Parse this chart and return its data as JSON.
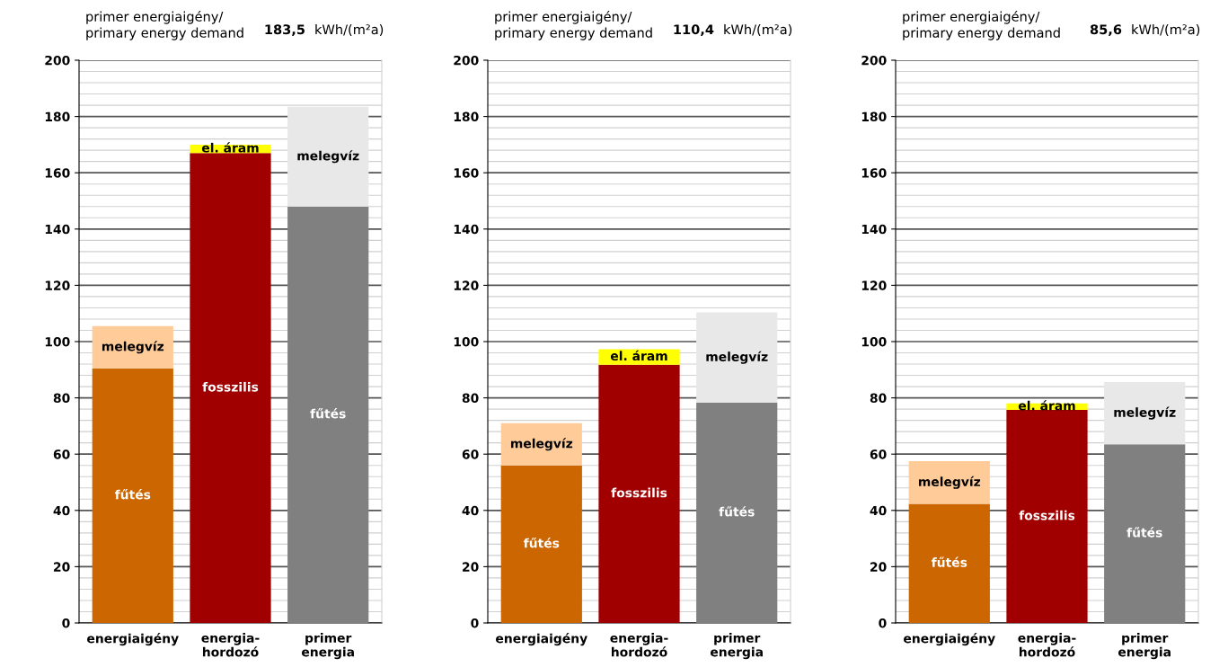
{
  "chart_data": [
    {
      "type": "bar",
      "title": "primer energiaigény/\nprimary energy demand",
      "annotations": [
        "183,5",
        "kWh/(m²a)"
      ],
      "stacked": true,
      "categories": [
        "energiaigény",
        "energia-\nhordozó",
        "primer\nenergia"
      ],
      "series": [
        {
          "colors": [
            "#cc6600",
            "#a00000",
            "#808080"
          ],
          "values": [
            90.5,
            167,
            148
          ],
          "value_labels": [
            "fűtés",
            "fosszilis",
            "fűtés"
          ]
        },
        {
          "colors": [
            "#ffcc99",
            "#ffff00",
            "#e8e8e8"
          ],
          "values": [
            15,
            3,
            35.5
          ],
          "value_labels": [
            "melegvíz",
            "el. áram",
            "melegvíz"
          ]
        }
      ],
      "ylim": [
        0,
        200
      ],
      "yticks": [
        0,
        {
          "value": 4,
          "label": null
        },
        {
          "value": 8,
          "label": null
        },
        {
          "value": 12,
          "label": null
        },
        {
          "value": 16,
          "label": null
        },
        20,
        {
          "value": 24,
          "label": null
        },
        {
          "value": 28,
          "label": null
        },
        {
          "value": 32,
          "label": null
        },
        {
          "value": 36,
          "label": null
        },
        40,
        {
          "value": 44,
          "label": null
        },
        {
          "value": 48,
          "label": null
        },
        {
          "value": 52,
          "label": null
        },
        {
          "value": 56,
          "label": null
        },
        60,
        {
          "value": 64,
          "label": null
        },
        {
          "value": 68,
          "label": null
        },
        {
          "value": 72,
          "label": null
        },
        {
          "value": 76,
          "label": null
        },
        80,
        {
          "value": 84,
          "label": null
        },
        {
          "value": 88,
          "label": null
        },
        {
          "value": 92,
          "label": null
        },
        {
          "value": 96,
          "label": null
        },
        100,
        {
          "value": 104,
          "label": null
        },
        {
          "value": 108,
          "label": null
        },
        {
          "value": 112,
          "label": null
        },
        {
          "value": 116,
          "label": null
        },
        120,
        {
          "value": 124,
          "label": null
        },
        {
          "value": 128,
          "label": null
        },
        {
          "value": 132,
          "label": null
        },
        {
          "value": 136,
          "label": null
        },
        140,
        {
          "value": 144,
          "label": null
        },
        {
          "value": 148,
          "label": null
        },
        {
          "value": 152,
          "label": null
        },
        {
          "value": 156,
          "label": null
        },
        160,
        {
          "value": 164,
          "label": null
        },
        {
          "value": 168,
          "label": null
        },
        {
          "value": 172,
          "label": null
        },
        {
          "value": 176,
          "label": null
        },
        180,
        {
          "value": 184,
          "label": null
        },
        {
          "value": 188,
          "label": null
        },
        {
          "value": 192,
          "label": null
        },
        {
          "value": 196,
          "label": null
        },
        200
      ],
      "grid": "y"
    },
    {
      "type": "bar",
      "title": "primer energiaigény/\nprimary energy demand",
      "annotations": [
        "110,4",
        "kWh/(m²a)"
      ],
      "stacked": true,
      "categories": [
        "energiaigény",
        "energia-\nhordozó",
        "primer\nenergia"
      ],
      "series": [
        {
          "colors": [
            "#cc6600",
            "#a00000",
            "#808080"
          ],
          "values": [
            56,
            91.8,
            78.3
          ],
          "value_labels": [
            "fűtés",
            "fosszilis",
            "fűtés"
          ]
        },
        {
          "colors": [
            "#ffcc99",
            "#ffff00",
            "#e8e8e8"
          ],
          "values": [
            15,
            5.5,
            32.1
          ],
          "value_labels": [
            "melegvíz",
            "el. áram",
            "melegvíz"
          ]
        }
      ],
      "ylim": [
        0,
        200
      ],
      "yticks": [
        0,
        {
          "value": 4,
          "label": null
        },
        {
          "value": 8,
          "label": null
        },
        {
          "value": 12,
          "label": null
        },
        {
          "value": 16,
          "label": null
        },
        20,
        {
          "value": 24,
          "label": null
        },
        {
          "value": 28,
          "label": null
        },
        {
          "value": 32,
          "label": null
        },
        {
          "value": 36,
          "label": null
        },
        40,
        {
          "value": 44,
          "label": null
        },
        {
          "value": 48,
          "label": null
        },
        {
          "value": 52,
          "label": null
        },
        {
          "value": 56,
          "label": null
        },
        60,
        {
          "value": 64,
          "label": null
        },
        {
          "value": 68,
          "label": null
        },
        {
          "value": 72,
          "label": null
        },
        {
          "value": 76,
          "label": null
        },
        80,
        {
          "value": 84,
          "label": null
        },
        {
          "value": 88,
          "label": null
        },
        {
          "value": 92,
          "label": null
        },
        {
          "value": 96,
          "label": null
        },
        100,
        {
          "value": 104,
          "label": null
        },
        {
          "value": 108,
          "label": null
        },
        {
          "value": 112,
          "label": null
        },
        {
          "value": 116,
          "label": null
        },
        120,
        {
          "value": 124,
          "label": null
        },
        {
          "value": 128,
          "label": null
        },
        {
          "value": 132,
          "label": null
        },
        {
          "value": 136,
          "label": null
        },
        140,
        {
          "value": 144,
          "label": null
        },
        {
          "value": 148,
          "label": null
        },
        {
          "value": 152,
          "label": null
        },
        {
          "value": 156,
          "label": null
        },
        160,
        {
          "value": 164,
          "label": null
        },
        {
          "value": 168,
          "label": null
        },
        {
          "value": 172,
          "label": null
        },
        {
          "value": 176,
          "label": null
        },
        180,
        {
          "value": 184,
          "label": null
        },
        {
          "value": 188,
          "label": null
        },
        {
          "value": 192,
          "label": null
        },
        {
          "value": 196,
          "label": null
        },
        200
      ],
      "grid": "y"
    },
    {
      "type": "bar",
      "title": "primer energiaigény/\nprimary energy demand",
      "annotations": [
        "85,6",
        "kWh/(m²a)"
      ],
      "stacked": true,
      "categories": [
        "energiaigény",
        "energia-\nhordozó",
        "primer\nenergia"
      ],
      "series": [
        {
          "colors": [
            "#cc6600",
            "#a00000",
            "#808080"
          ],
          "values": [
            42.3,
            75.7,
            63.5
          ],
          "value_labels": [
            "fűtés",
            "fosszilis",
            "fűtés"
          ]
        },
        {
          "colors": [
            "#ffcc99",
            "#ffff00",
            "#e8e8e8"
          ],
          "values": [
            15.2,
            2.3,
            22.1
          ],
          "value_labels": [
            "melegvíz",
            "el. áram",
            "melegvíz"
          ]
        }
      ],
      "ylim": [
        0,
        200
      ],
      "yticks": [
        0,
        {
          "value": 4,
          "label": null
        },
        {
          "value": 8,
          "label": null
        },
        {
          "value": 12,
          "label": null
        },
        {
          "value": 16,
          "label": null
        },
        20,
        {
          "value": 24,
          "label": null
        },
        {
          "value": 28,
          "label": null
        },
        {
          "value": 32,
          "label": null
        },
        {
          "value": 36,
          "label": null
        },
        40,
        {
          "value": 44,
          "label": null
        },
        {
          "value": 48,
          "label": null
        },
        {
          "value": 52,
          "label": null
        },
        {
          "value": 56,
          "label": null
        },
        60,
        {
          "value": 64,
          "label": null
        },
        {
          "value": 68,
          "label": null
        },
        {
          "value": 72,
          "label": null
        },
        {
          "value": 76,
          "label": null
        },
        80,
        {
          "value": 84,
          "label": null
        },
        {
          "value": 88,
          "label": null
        },
        {
          "value": 92,
          "label": null
        },
        {
          "value": 96,
          "label": null
        },
        100,
        {
          "value": 104,
          "label": null
        },
        {
          "value": 108,
          "label": null
        },
        {
          "value": 112,
          "label": null
        },
        {
          "value": 116,
          "label": null
        },
        120,
        {
          "value": 124,
          "label": null
        },
        {
          "value": 128,
          "label": null
        },
        {
          "value": 132,
          "label": null
        },
        {
          "value": 136,
          "label": null
        },
        140,
        {
          "value": 144,
          "label": null
        },
        {
          "value": 148,
          "label": null
        },
        {
          "value": 152,
          "label": null
        },
        {
          "value": 156,
          "label": null
        },
        160,
        {
          "value": 164,
          "label": null
        },
        {
          "value": 168,
          "label": null
        },
        {
          "value": 172,
          "label": null
        },
        {
          "value": 176,
          "label": null
        },
        180,
        {
          "value": 184,
          "label": null
        },
        {
          "value": 188,
          "label": null
        },
        {
          "value": 192,
          "label": null
        },
        {
          "value": 196,
          "label": null
        },
        200
      ],
      "grid": "y"
    }
  ]
}
